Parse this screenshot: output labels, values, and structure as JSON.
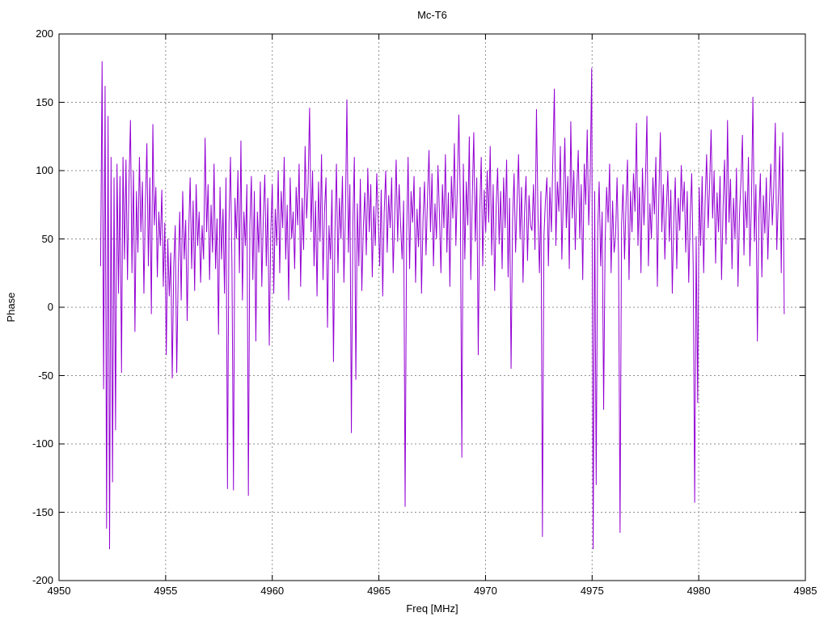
{
  "figure": {
    "background": "#ffffff",
    "text_color": "#000000"
  },
  "chart_data": {
    "type": "line",
    "title": "Mc-T6",
    "xlabel": "Freq [MHz]",
    "ylabel": "Phase",
    "xlim": [
      4950,
      4985
    ],
    "ylim": [
      -200,
      200
    ],
    "x_ticks": [
      4950,
      4955,
      4960,
      4965,
      4970,
      4975,
      4980,
      4985
    ],
    "y_ticks": [
      -200,
      -150,
      -100,
      -50,
      0,
      50,
      100,
      150,
      200
    ],
    "grid": true,
    "grid_style": "dashed",
    "grid_color": "#909090",
    "border_color": "#000000",
    "legend_position": "none",
    "series": [
      {
        "name": "Mc-T6",
        "color": "#9400d3",
        "x_start": 4951.95,
        "x_step": 0.07,
        "values": [
          30,
          180,
          -60,
          162,
          -162,
          140,
          -177,
          110,
          -128,
          95,
          -90,
          105,
          10,
          96,
          -48,
          110,
          35,
          108,
          20,
          90,
          137,
          25,
          100,
          -18,
          85,
          40,
          110,
          55,
          92,
          10,
          75,
          120,
          30,
          95,
          -5,
          134,
          60,
          88,
          22,
          70,
          45,
          86,
          15,
          62,
          -35,
          50,
          8,
          40,
          -52,
          30,
          60,
          -48,
          25,
          70,
          5,
          85,
          35,
          64,
          -10,
          55,
          95,
          28,
          78,
          12,
          90,
          45,
          70,
          18,
          60,
          35,
          124,
          55,
          90,
          20,
          75,
          40,
          105,
          28,
          65,
          -20,
          88,
          35,
          72,
          10,
          95,
          -133,
          60,
          110,
          30,
          -134,
          80,
          50,
          100,
          25,
          122,
          5,
          70,
          45,
          90,
          -138,
          60,
          96,
          20,
          85,
          -25,
          70,
          40,
          92,
          15,
          66,
          97,
          30,
          80,
          -28,
          55,
          90,
          10,
          72,
          45,
          100,
          25,
          85,
          58,
          110,
          35,
          75,
          5,
          95,
          50,
          70,
          28,
          88,
          60,
          105,
          15,
          80,
          42,
          118,
          65,
          90,
          146,
          55,
          100,
          30,
          78,
          8,
          92,
          48,
          112,
          20,
          70,
          95,
          -15,
          60,
          35,
          86,
          -40,
          55,
          105,
          25,
          80,
          50,
          96,
          18,
          68,
          152,
          40,
          90,
          -92,
          62,
          110,
          -53,
          76,
          30,
          94,
          12,
          58,
          84,
          38,
          102,
          55,
          90,
          22,
          74,
          45,
          98,
          64,
          30,
          86,
          8,
          70,
          100,
          40,
          82,
          58,
          95,
          25,
          66,
          108,
          48,
          90,
          60,
          35,
          78,
          -146,
          52,
          110,
          28,
          85,
          62,
          96,
          18,
          72,
          44,
          88,
          10,
          64,
          92,
          38,
          80,
          115,
          55,
          98,
          30,
          76,
          50,
          104,
          68,
          25,
          90,
          58,
          112,
          40,
          84,
          15,
          96,
          65,
          120,
          45,
          88,
          141,
          75,
          -110,
          105,
          35,
          92,
          60,
          125,
          20,
          80,
          128,
          48,
          95,
          -35,
          70,
          110,
          30,
          86,
          55,
          100,
          62,
          118,
          38,
          90,
          12,
          74,
          102,
          46,
          85,
          28,
          95,
          58,
          108,
          22,
          80,
          -45,
          64,
          98,
          40,
          76,
          112,
          50,
          88,
          18,
          70,
          96,
          34,
          82,
          60,
          56,
          90,
          42,
          145,
          68,
          25,
          85,
          -168,
          52,
          78,
          95,
          30,
          88,
          55,
          110,
          160,
          45,
          92,
          70,
          118,
          35,
          80,
          124,
          58,
          96,
          28,
          136,
          65,
          100,
          42,
          85,
          115,
          50,
          90,
          20,
          105,
          75,
          130,
          60,
          95,
          175,
          -177,
          85,
          -130,
          55,
          92,
          30,
          70,
          -75,
          48,
          88,
          62,
          105,
          25,
          78,
          40,
          52,
          95,
          38,
          -165,
          60,
          90,
          35,
          75,
          108,
          20,
          85,
          55,
          98,
          70,
          135,
          45,
          88,
          25,
          102,
          60,
          92,
          140,
          30,
          76,
          50,
          95,
          68,
          110,
          15,
          82,
          128,
          55,
          90,
          35,
          72,
          100,
          48,
          86,
          10,
          64,
          95,
          28,
          80,
          56,
          104,
          70,
          92,
          40,
          85,
          18,
          66,
          98,
          30,
          -143,
          52,
          -70,
          88,
          45,
          96,
          25,
          78,
          112,
          58,
          90,
          130,
          65,
          100,
          32,
          84,
          55,
          96,
          20,
          72,
          108,
          46,
          137,
          62,
          94,
          28,
          80,
          50,
          102,
          15,
          68,
          92,
          126,
          38,
          85,
          58,
          110,
          30,
          76,
          154,
          48,
          90,
          -25,
          66,
          98,
          22,
          82,
          54,
          95,
          35,
          74,
          105,
          60,
          88,
          135,
          42,
          78,
          118,
          25,
          128,
          -5
        ]
      }
    ]
  }
}
